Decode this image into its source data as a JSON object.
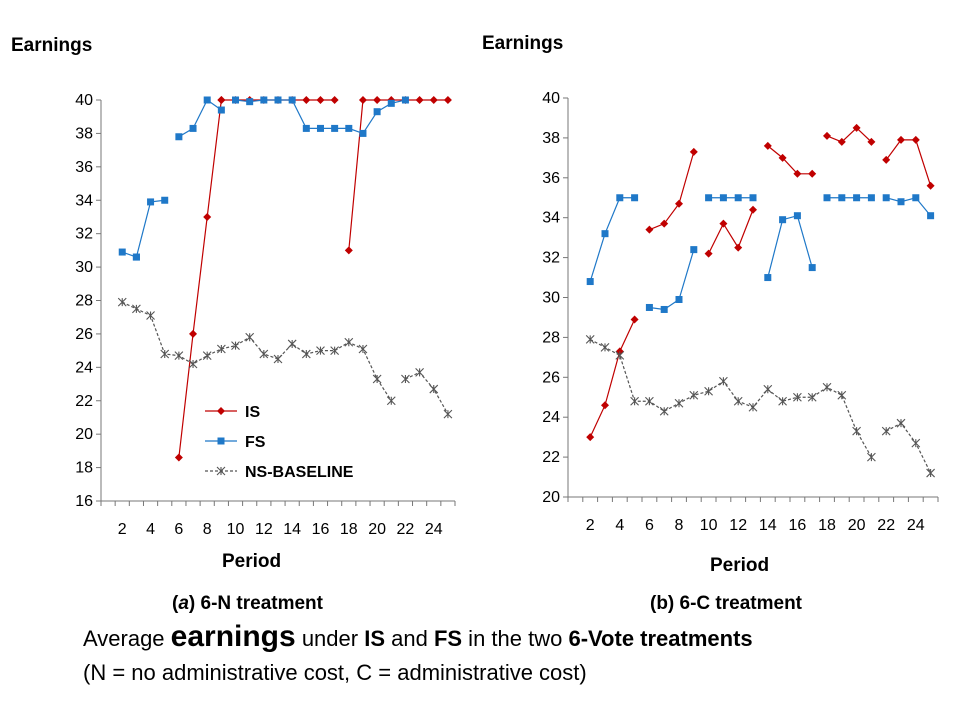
{
  "chart_data": [
    {
      "type": "line",
      "ylabel": "Earnings",
      "xlabel": "Period",
      "caption_prefix": "(",
      "caption_letter": "a",
      "caption_suffix": ") 6-N treatment",
      "ylim": [
        16,
        40
      ],
      "yticks": [
        16,
        18,
        20,
        22,
        24,
        26,
        28,
        30,
        32,
        34,
        36,
        38,
        40
      ],
      "xlim": [
        1,
        25
      ],
      "xticks": [
        2,
        4,
        6,
        8,
        10,
        12,
        14,
        16,
        18,
        20,
        22,
        24
      ],
      "legend": "bottom-right inside",
      "series": [
        {
          "name": "IS",
          "color": "#c00000",
          "marker": "diamond",
          "style": "solid",
          "segments": [
            [
              [
                6,
                18.6
              ],
              [
                7,
                26
              ],
              [
                8,
                33
              ],
              [
                9,
                40
              ]
            ],
            [
              [
                9,
                40
              ],
              [
                10,
                40
              ],
              [
                11,
                40
              ],
              [
                12,
                40
              ],
              [
                13,
                40
              ],
              [
                14,
                40
              ],
              [
                15,
                40
              ],
              [
                16,
                40
              ],
              [
                17,
                40
              ]
            ],
            [
              [
                18,
                31
              ],
              [
                19,
                40
              ],
              [
                20,
                40
              ],
              [
                21,
                40
              ],
              [
                22,
                40
              ],
              [
                23,
                40
              ],
              [
                24,
                40
              ],
              [
                25,
                40
              ]
            ]
          ]
        },
        {
          "name": "FS",
          "color": "#1f78c8",
          "marker": "square",
          "style": "solid",
          "segments": [
            [
              [
                2,
                30.9
              ],
              [
                3,
                30.6
              ]
            ],
            [
              [
                3,
                30.6
              ],
              [
                4,
                33.9
              ],
              [
                5,
                34
              ]
            ],
            [
              [
                6,
                37.8
              ],
              [
                7,
                38.3
              ],
              [
                8,
                40
              ],
              [
                9,
                39.4
              ]
            ],
            [
              [
                10,
                40
              ],
              [
                11,
                39.9
              ],
              [
                12,
                40
              ],
              [
                13,
                40
              ],
              [
                14,
                40
              ],
              [
                15,
                38.3
              ],
              [
                16,
                38.3
              ],
              [
                17,
                38.3
              ],
              [
                18,
                38.3
              ],
              [
                19,
                38
              ],
              [
                20,
                39.3
              ],
              [
                21,
                39.8
              ],
              [
                22,
                40
              ]
            ]
          ]
        },
        {
          "name": "NS-BASELINE",
          "color": "#555555",
          "marker": "asterisk",
          "style": "dashed",
          "segments": [
            [
              [
                2,
                27.9
              ],
              [
                3,
                27.5
              ],
              [
                4,
                27.1
              ],
              [
                5,
                24.8
              ],
              [
                6,
                24.7
              ],
              [
                7,
                24.2
              ],
              [
                8,
                24.7
              ],
              [
                9,
                25.1
              ],
              [
                10,
                25.3
              ],
              [
                11,
                25.8
              ],
              [
                12,
                24.8
              ],
              [
                13,
                24.5
              ],
              [
                14,
                25.4
              ],
              [
                15,
                24.8
              ],
              [
                16,
                25
              ],
              [
                17,
                25
              ],
              [
                18,
                25.5
              ],
              [
                19,
                25.1
              ],
              [
                20,
                23.3
              ],
              [
                21,
                22
              ]
            ],
            [
              [
                22,
                23.3
              ],
              [
                23,
                23.7
              ],
              [
                24,
                22.7
              ],
              [
                25,
                21.2
              ]
            ]
          ]
        }
      ]
    },
    {
      "type": "line",
      "ylabel": "Earnings",
      "xlabel": "Period",
      "caption_prefix": "(b) 6-C treatment",
      "caption_letter": "",
      "caption_suffix": "",
      "ylim": [
        20,
        40
      ],
      "yticks": [
        20,
        22,
        24,
        26,
        28,
        30,
        32,
        34,
        36,
        38,
        40
      ],
      "xlim": [
        1,
        25
      ],
      "xticks": [
        2,
        4,
        6,
        8,
        10,
        12,
        14,
        16,
        18,
        20,
        22,
        24
      ],
      "series": [
        {
          "name": "IS",
          "color": "#c00000",
          "marker": "diamond",
          "style": "solid",
          "segments": [
            [
              [
                2,
                23
              ],
              [
                3,
                24.6
              ],
              [
                4,
                27.3
              ],
              [
                5,
                28.9
              ]
            ],
            [
              [
                6,
                33.4
              ],
              [
                7,
                33.7
              ],
              [
                8,
                34.7
              ],
              [
                9,
                37.3
              ]
            ],
            [
              [
                10,
                32.2
              ],
              [
                11,
                33.7
              ],
              [
                12,
                32.5
              ],
              [
                13,
                34.4
              ]
            ],
            [
              [
                14,
                37.6
              ],
              [
                15,
                37
              ],
              [
                16,
                36.2
              ],
              [
                17,
                36.2
              ]
            ],
            [
              [
                18,
                38.1
              ],
              [
                19,
                37.8
              ],
              [
                20,
                38.5
              ],
              [
                21,
                37.8
              ]
            ],
            [
              [
                22,
                36.9
              ],
              [
                23,
                37.9
              ],
              [
                24,
                37.9
              ],
              [
                25,
                35.6
              ]
            ]
          ]
        },
        {
          "name": "FS",
          "color": "#1f78c8",
          "marker": "square",
          "style": "solid",
          "segments": [
            [
              [
                2,
                30.8
              ],
              [
                3,
                33.2
              ],
              [
                4,
                35
              ],
              [
                5,
                35
              ]
            ],
            [
              [
                6,
                29.5
              ],
              [
                7,
                29.4
              ],
              [
                8,
                29.9
              ],
              [
                9,
                32.4
              ]
            ],
            [
              [
                10,
                35
              ],
              [
                11,
                35
              ],
              [
                12,
                35
              ],
              [
                13,
                35
              ]
            ],
            [
              [
                14,
                31
              ],
              [
                15,
                33.9
              ],
              [
                16,
                34.1
              ],
              [
                17,
                31.5
              ]
            ],
            [
              [
                18,
                35
              ],
              [
                19,
                35
              ],
              [
                20,
                35
              ],
              [
                21,
                35
              ]
            ],
            [
              [
                22,
                35
              ],
              [
                23,
                34.8
              ],
              [
                24,
                35
              ],
              [
                25,
                34.1
              ]
            ]
          ]
        },
        {
          "name": "NS-BASELINE",
          "color": "#555555",
          "marker": "asterisk",
          "style": "dashed",
          "segments": [
            [
              [
                2,
                27.9
              ],
              [
                3,
                27.5
              ],
              [
                4,
                27.1
              ],
              [
                5,
                24.8
              ],
              [
                6,
                24.8
              ],
              [
                7,
                24.3
              ],
              [
                8,
                24.7
              ],
              [
                9,
                25.1
              ],
              [
                10,
                25.3
              ],
              [
                11,
                25.8
              ],
              [
                12,
                24.8
              ],
              [
                13,
                24.5
              ],
              [
                14,
                25.4
              ],
              [
                15,
                24.8
              ],
              [
                16,
                25
              ],
              [
                17,
                25
              ],
              [
                18,
                25.5
              ],
              [
                19,
                25.1
              ],
              [
                20,
                23.3
              ],
              [
                21,
                22
              ]
            ],
            [
              [
                22,
                23.3
              ],
              [
                23,
                23.7
              ],
              [
                24,
                22.7
              ],
              [
                25,
                21.2
              ]
            ]
          ]
        }
      ]
    }
  ],
  "summary": {
    "part1": "Average ",
    "part2": "earnings",
    "part3": " under ",
    "part4": "IS",
    "part5": " and ",
    "part6": "FS",
    "part7": " in the two ",
    "part8": "6-Vote treatments",
    "line2": "(N = no administrative cost, C = administrative cost)"
  }
}
